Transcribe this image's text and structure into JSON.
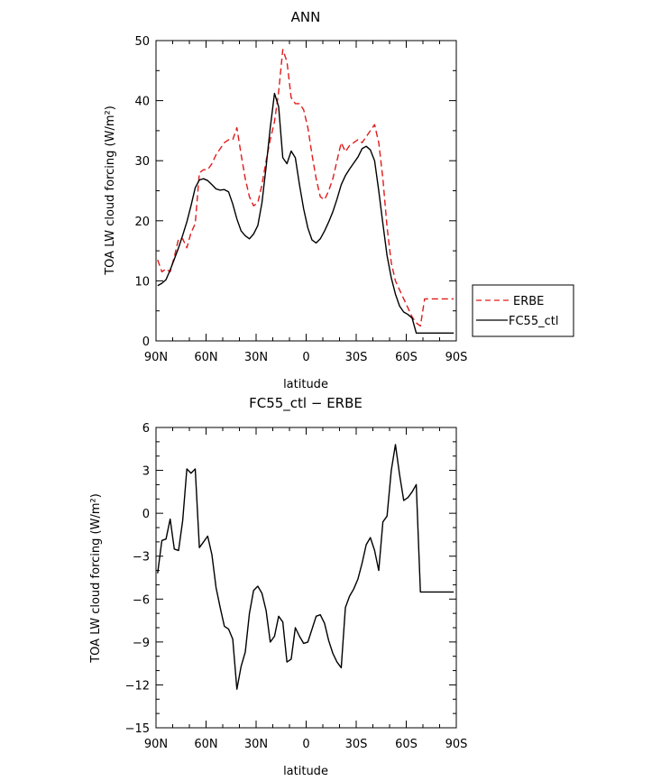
{
  "chart_data": [
    {
      "type": "line",
      "title": "ANN",
      "xlabel": "latitude",
      "ylabel": "TOA LW cloud forcing (W/m²)",
      "xlim": [
        -90,
        90
      ],
      "ylim": [
        0,
        50
      ],
      "xticks": [
        -90,
        -60,
        -30,
        0,
        30,
        60,
        90
      ],
      "xtick_labels": [
        "90N",
        "60N",
        "30N",
        "0",
        "30S",
        "60S",
        "90S"
      ],
      "yticks": [
        0,
        10,
        20,
        30,
        40,
        50
      ],
      "ytick_labels": [
        "0",
        "10",
        "20",
        "30",
        "40",
        "50"
      ],
      "legend_position": "right",
      "series": [
        {
          "name": "ERBE",
          "color": "#e01b1b",
          "dash": "dashed",
          "x": [
            -89,
            -86.5,
            -84,
            -81.5,
            -79,
            -76.5,
            -74,
            -71.5,
            -69,
            -66.5,
            -64,
            -61.5,
            -59,
            -56.5,
            -54,
            -51.5,
            -49,
            -46.5,
            -44,
            -41.5,
            -39,
            -36.5,
            -34,
            -31.5,
            -29,
            -26.5,
            -24,
            -21.5,
            -19,
            -16.5,
            -14,
            -11.5,
            -9,
            -6.5,
            -4,
            -1.5,
            1,
            3.5,
            6,
            8.5,
            11,
            13.5,
            16,
            18.5,
            21,
            23.5,
            26,
            28.5,
            31,
            33.5,
            36,
            38.5,
            41,
            43.5,
            46,
            48.5,
            51,
            53.5,
            56,
            58.5,
            61,
            63.5,
            66,
            68.5,
            71,
            73.5,
            76,
            78.5,
            81,
            83.5,
            86,
            88.5
          ],
          "values": [
            13.5,
            11.5,
            12,
            11.5,
            14,
            17,
            17,
            15.5,
            18,
            19.5,
            28,
            28.5,
            28.5,
            29.5,
            31,
            32,
            33,
            33.5,
            33.5,
            35.5,
            31,
            27,
            24,
            22.5,
            23,
            26,
            30,
            33.5,
            36.5,
            41.5,
            48.5,
            46.5,
            40.5,
            39.5,
            39.5,
            38.5,
            35.5,
            31,
            27,
            24,
            23.5,
            25,
            27,
            30,
            33,
            31.5,
            32.5,
            33,
            33.5,
            33,
            34,
            35,
            36,
            33,
            27,
            19,
            13,
            10,
            8.5,
            7,
            5.5,
            4,
            3,
            2.5,
            7,
            7,
            7,
            7,
            7,
            7,
            7,
            7
          ]
        },
        {
          "name": "FC55_ctl",
          "color": "#000000",
          "dash": "solid",
          "x": [
            -89,
            -86.5,
            -84,
            -81.5,
            -79,
            -76.5,
            -74,
            -71.5,
            -69,
            -66.5,
            -64,
            -61.5,
            -59,
            -56.5,
            -54,
            -51.5,
            -49,
            -46.5,
            -44,
            -41.5,
            -39,
            -36.5,
            -34,
            -31.5,
            -29,
            -26.5,
            -24,
            -21.5,
            -19,
            -16.5,
            -14,
            -11.5,
            -9,
            -6.5,
            -4,
            -1.5,
            1,
            3.5,
            6,
            8.5,
            11,
            13.5,
            16,
            18.5,
            21,
            23.5,
            26,
            28.5,
            31,
            33.5,
            36,
            38.5,
            41,
            43.5,
            46,
            48.5,
            51,
            53.5,
            56,
            58.5,
            61,
            63.5,
            66,
            68.5,
            71,
            73.5,
            76,
            78.5,
            81,
            83.5,
            86,
            88.5
          ],
          "values": [
            9.2,
            9.6,
            10.2,
            11.8,
            13.6,
            15.5,
            17.6,
            19.8,
            22.5,
            25.5,
            26.8,
            27,
            26.7,
            26,
            25.3,
            25.1,
            25.2,
            24.8,
            22.8,
            20.3,
            18.3,
            17.5,
            17,
            17.8,
            19.2,
            23,
            29,
            35.5,
            41.2,
            39,
            30.5,
            29.5,
            31.6,
            30.5,
            26,
            22,
            18.8,
            16.8,
            16.3,
            17,
            18.3,
            19.8,
            21.5,
            23.6,
            26,
            27.5,
            28.6,
            29.6,
            30.6,
            32,
            32.4,
            31.8,
            30,
            25,
            19.5,
            14.2,
            10.5,
            7.8,
            5.8,
            4.8,
            4.4,
            3.8,
            1.3,
            1.3,
            1.3,
            1.3,
            1.3,
            1.3,
            1.3,
            1.3,
            1.3,
            1.3
          ]
        }
      ]
    },
    {
      "type": "line",
      "title": "FC55_ctl − ERBE",
      "xlabel": "latitude",
      "ylabel": "TOA LW cloud forcing (W/m²)",
      "xlim": [
        -90,
        90
      ],
      "ylim": [
        -15,
        6
      ],
      "xticks": [
        -90,
        -60,
        -30,
        0,
        30,
        60,
        90
      ],
      "xtick_labels": [
        "90N",
        "60N",
        "30N",
        "0",
        "30S",
        "60S",
        "90S"
      ],
      "yticks": [
        -15,
        -12,
        -9,
        -6,
        -3,
        0,
        3,
        6
      ],
      "ytick_labels": [
        "−15",
        "−12",
        "−9",
        "−6",
        "−3",
        "0",
        "3",
        "6"
      ],
      "series": [
        {
          "color": "#000000",
          "dash": "solid",
          "x": [
            -89,
            -86.5,
            -84,
            -81.5,
            -79,
            -76.5,
            -74,
            -71.5,
            -69,
            -66.5,
            -64,
            -61.5,
            -59,
            -56.5,
            -54,
            -51.5,
            -49,
            -46.5,
            -44,
            -41.5,
            -39,
            -36.5,
            -34,
            -31.5,
            -29,
            -26.5,
            -24,
            -21.5,
            -19,
            -16.5,
            -14,
            -11.5,
            -9,
            -6.5,
            -4,
            -1.5,
            1,
            3.5,
            6,
            8.5,
            11,
            13.5,
            16,
            18.5,
            21,
            23.5,
            26,
            28.5,
            31,
            33.5,
            36,
            38.5,
            41,
            43.5,
            46,
            48.5,
            51,
            53.5,
            56,
            58.5,
            61,
            63.5,
            66,
            68.5,
            71,
            73.5,
            76,
            78.5,
            81,
            83.5,
            86,
            88.5
          ],
          "values": [
            -4.2,
            -1.9,
            -1.8,
            -0.4,
            -2.5,
            -2.6,
            -0.5,
            3.1,
            2.8,
            3.1,
            -2.4,
            -2.0,
            -1.6,
            -2.9,
            -5.2,
            -6.6,
            -7.9,
            -8.1,
            -8.8,
            -12.3,
            -10.7,
            -9.7,
            -7.0,
            -5.4,
            -5.1,
            -5.6,
            -6.8,
            -9.0,
            -8.6,
            -7.2,
            -7.6,
            -10.4,
            -10.2,
            -8.0,
            -8.6,
            -9.1,
            -9.0,
            -8.1,
            -7.2,
            -7.1,
            -7.7,
            -8.9,
            -9.8,
            -10.4,
            -10.8,
            -6.6,
            -5.8,
            -5.3,
            -4.6,
            -3.5,
            -2.2,
            -1.7,
            -2.6,
            -4.0,
            -0.6,
            -0.2,
            3.0,
            4.8,
            2.7,
            0.9,
            1.1,
            1.5,
            2.0,
            -5.5,
            -5.5,
            -5.5,
            -5.5,
            -5.5,
            -5.5,
            -5.5,
            -5.5,
            -5.5
          ]
        }
      ]
    }
  ]
}
